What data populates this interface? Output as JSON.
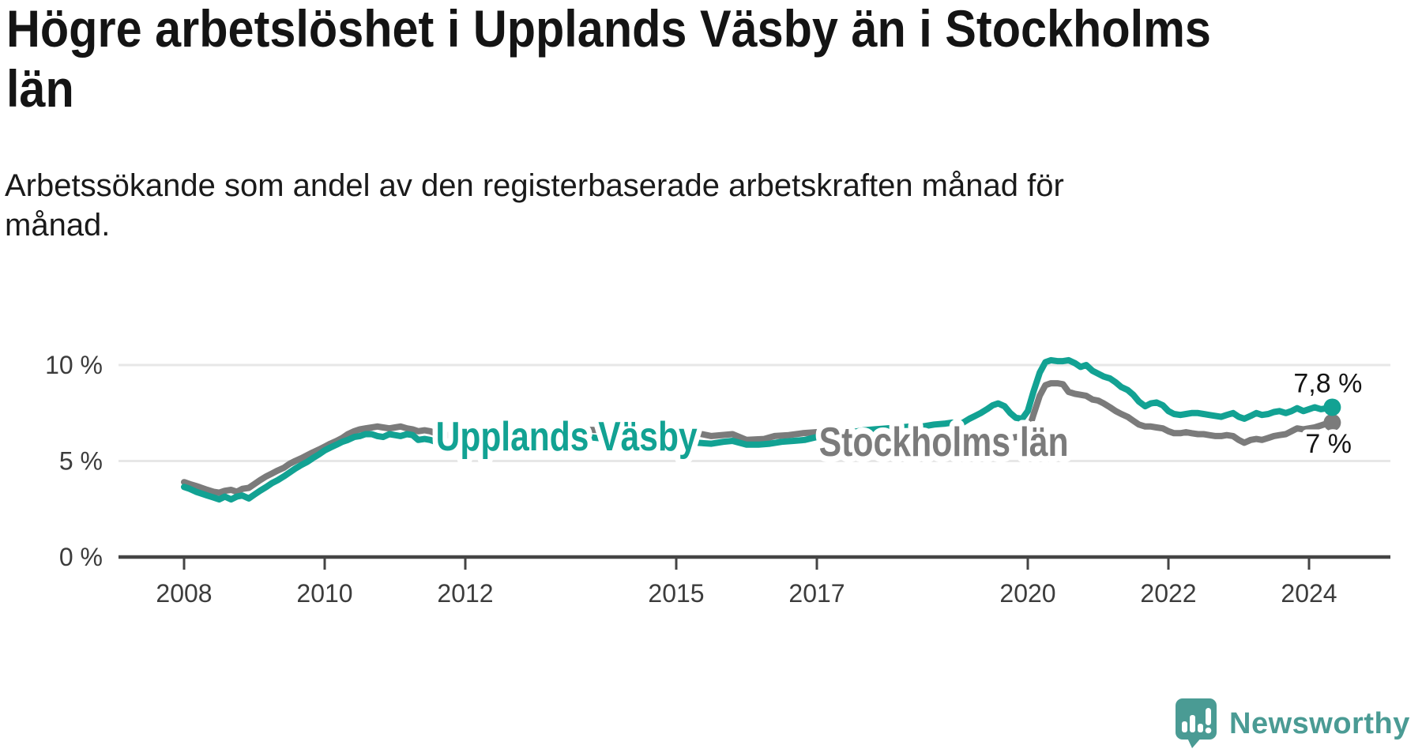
{
  "title_lines": [
    "Högre arbetslöshet i Upplands Väsby än i Stockholms",
    "län"
  ],
  "subtitle_lines": [
    "Arbetssökande som andel av den registerbaserade arbetskraften månad för",
    "månad."
  ],
  "branding": {
    "logo_text": "Newsworthy",
    "brand_color": "#4A9B94"
  },
  "chart_data": {
    "type": "line",
    "title": "Högre arbetslöshet i Upplands Väsby än i Stockholms län",
    "subtitle": "Arbetssökande som andel av den registerbaserade arbetskraften månad för månad.",
    "xlabel": "",
    "ylabel": "",
    "x_unit": "year (monthly data)",
    "y_unit": "%",
    "grid": true,
    "legend": "inline-labels",
    "ylim": [
      0,
      10.6
    ],
    "xlim": [
      2008,
      2024.45
    ],
    "y_axis": {
      "ticks": [
        {
          "value": 0,
          "label": "0 %"
        },
        {
          "value": 5,
          "label": "5 %"
        },
        {
          "value": 10,
          "label": "10 %"
        }
      ]
    },
    "x_axis": {
      "ticks": [
        2008,
        2010,
        2012,
        2015,
        2017,
        2020,
        2022,
        2024
      ],
      "labels": [
        "2008",
        "2010",
        "2012",
        "2015",
        "2017",
        "2020",
        "2022",
        "2024"
      ]
    },
    "series": [
      {
        "name": "Upplands Väsby",
        "color": "#12A293",
        "end_label": "7,8 %",
        "end_value": 7.8,
        "label_anchor": {
          "x": 2011.58,
          "y": 5.56
        },
        "points": [
          [
            2008.0,
            3.65
          ],
          [
            2008.08,
            3.55
          ],
          [
            2008.17,
            3.4
          ],
          [
            2008.25,
            3.3
          ],
          [
            2008.33,
            3.2
          ],
          [
            2008.42,
            3.1
          ],
          [
            2008.5,
            3.0
          ],
          [
            2008.58,
            3.15
          ],
          [
            2008.67,
            3.0
          ],
          [
            2008.75,
            3.15
          ],
          [
            2008.83,
            3.2
          ],
          [
            2008.92,
            3.05
          ],
          [
            2009.0,
            3.25
          ],
          [
            2009.08,
            3.45
          ],
          [
            2009.17,
            3.65
          ],
          [
            2009.25,
            3.85
          ],
          [
            2009.33,
            4.0
          ],
          [
            2009.42,
            4.2
          ],
          [
            2009.5,
            4.4
          ],
          [
            2009.58,
            4.6
          ],
          [
            2009.67,
            4.8
          ],
          [
            2009.75,
            4.95
          ],
          [
            2009.83,
            5.15
          ],
          [
            2009.92,
            5.35
          ],
          [
            2010.0,
            5.55
          ],
          [
            2010.08,
            5.7
          ],
          [
            2010.17,
            5.85
          ],
          [
            2010.25,
            6.0
          ],
          [
            2010.33,
            6.1
          ],
          [
            2010.42,
            6.25
          ],
          [
            2010.5,
            6.3
          ],
          [
            2010.58,
            6.4
          ],
          [
            2010.67,
            6.4
          ],
          [
            2010.75,
            6.3
          ],
          [
            2010.83,
            6.25
          ],
          [
            2010.92,
            6.4
          ],
          [
            2011.0,
            6.35
          ],
          [
            2011.08,
            6.3
          ],
          [
            2011.17,
            6.4
          ],
          [
            2011.25,
            6.35
          ],
          [
            2011.33,
            6.1
          ],
          [
            2011.42,
            6.15
          ],
          [
            2011.5,
            6.1
          ],
          [
            2011.58,
            6.0
          ],
          [
            2011.67,
            5.8
          ],
          [
            2011.75,
            5.9
          ],
          [
            2011.83,
            5.85
          ],
          [
            2012.0,
            5.95
          ],
          [
            2012.25,
            6.1
          ],
          [
            2012.5,
            6.2
          ],
          [
            2012.75,
            6.3
          ],
          [
            2013.0,
            6.35
          ],
          [
            2013.25,
            6.4
          ],
          [
            2013.5,
            6.35
          ],
          [
            2013.75,
            6.25
          ],
          [
            2014.0,
            6.15
          ],
          [
            2014.25,
            6.1
          ],
          [
            2014.5,
            6.05
          ],
          [
            2014.75,
            6.0
          ],
          [
            2015.0,
            5.95
          ],
          [
            2015.17,
            6.0
          ],
          [
            2015.3,
            5.95
          ],
          [
            2015.5,
            5.9
          ],
          [
            2015.67,
            6.0
          ],
          [
            2015.8,
            6.05
          ],
          [
            2016.0,
            5.85
          ],
          [
            2016.17,
            5.85
          ],
          [
            2016.33,
            5.9
          ],
          [
            2016.5,
            6.0
          ],
          [
            2016.67,
            6.05
          ],
          [
            2016.83,
            6.1
          ],
          [
            2017.0,
            6.25
          ],
          [
            2017.17,
            6.35
          ],
          [
            2017.33,
            6.45
          ],
          [
            2017.5,
            6.5
          ],
          [
            2017.67,
            6.6
          ],
          [
            2017.83,
            6.65
          ],
          [
            2018.0,
            6.7
          ],
          [
            2018.17,
            6.75
          ],
          [
            2018.33,
            6.8
          ],
          [
            2018.5,
            6.8
          ],
          [
            2018.67,
            6.9
          ],
          [
            2018.83,
            6.95
          ],
          [
            2018.92,
            7.0
          ],
          [
            2019.0,
            6.85
          ],
          [
            2019.08,
            7.0
          ],
          [
            2019.17,
            7.2
          ],
          [
            2019.25,
            7.35
          ],
          [
            2019.33,
            7.5
          ],
          [
            2019.42,
            7.7
          ],
          [
            2019.5,
            7.9
          ],
          [
            2019.58,
            8.0
          ],
          [
            2019.67,
            7.85
          ],
          [
            2019.75,
            7.5
          ],
          [
            2019.83,
            7.25
          ],
          [
            2019.92,
            7.2
          ],
          [
            2020.0,
            7.6
          ],
          [
            2020.08,
            8.6
          ],
          [
            2020.17,
            9.6
          ],
          [
            2020.25,
            10.15
          ],
          [
            2020.33,
            10.25
          ],
          [
            2020.42,
            10.2
          ],
          [
            2020.5,
            10.2
          ],
          [
            2020.58,
            10.25
          ],
          [
            2020.67,
            10.1
          ],
          [
            2020.75,
            9.9
          ],
          [
            2020.83,
            10.0
          ],
          [
            2020.92,
            9.7
          ],
          [
            2021.0,
            9.55
          ],
          [
            2021.08,
            9.4
          ],
          [
            2021.17,
            9.3
          ],
          [
            2021.25,
            9.1
          ],
          [
            2021.33,
            8.85
          ],
          [
            2021.42,
            8.7
          ],
          [
            2021.5,
            8.45
          ],
          [
            2021.58,
            8.1
          ],
          [
            2021.67,
            7.85
          ],
          [
            2021.75,
            8.0
          ],
          [
            2021.83,
            8.05
          ],
          [
            2021.92,
            7.9
          ],
          [
            2022.0,
            7.6
          ],
          [
            2022.08,
            7.45
          ],
          [
            2022.17,
            7.4
          ],
          [
            2022.25,
            7.45
          ],
          [
            2022.33,
            7.5
          ],
          [
            2022.42,
            7.5
          ],
          [
            2022.5,
            7.45
          ],
          [
            2022.58,
            7.4
          ],
          [
            2022.67,
            7.35
          ],
          [
            2022.75,
            7.3
          ],
          [
            2022.83,
            7.4
          ],
          [
            2022.92,
            7.5
          ],
          [
            2023.0,
            7.3
          ],
          [
            2023.08,
            7.2
          ],
          [
            2023.17,
            7.35
          ],
          [
            2023.25,
            7.5
          ],
          [
            2023.33,
            7.4
          ],
          [
            2023.42,
            7.45
          ],
          [
            2023.5,
            7.55
          ],
          [
            2023.58,
            7.6
          ],
          [
            2023.67,
            7.5
          ],
          [
            2023.75,
            7.6
          ],
          [
            2023.83,
            7.75
          ],
          [
            2023.92,
            7.6
          ],
          [
            2024.0,
            7.7
          ],
          [
            2024.08,
            7.8
          ],
          [
            2024.17,
            7.7
          ],
          [
            2024.25,
            7.75
          ],
          [
            2024.33,
            7.8
          ]
        ]
      },
      {
        "name": "Stockholms län",
        "color": "#7B7B7B",
        "end_label": "7 %",
        "end_value": 7.0,
        "label_anchor": {
          "x": 2017.03,
          "y": 5.27
        },
        "points": [
          [
            2008.0,
            3.9
          ],
          [
            2008.08,
            3.8
          ],
          [
            2008.17,
            3.7
          ],
          [
            2008.25,
            3.6
          ],
          [
            2008.33,
            3.5
          ],
          [
            2008.42,
            3.4
          ],
          [
            2008.5,
            3.35
          ],
          [
            2008.58,
            3.45
          ],
          [
            2008.67,
            3.5
          ],
          [
            2008.75,
            3.4
          ],
          [
            2008.83,
            3.55
          ],
          [
            2008.92,
            3.6
          ],
          [
            2009.0,
            3.8
          ],
          [
            2009.08,
            4.0
          ],
          [
            2009.17,
            4.2
          ],
          [
            2009.25,
            4.35
          ],
          [
            2009.33,
            4.5
          ],
          [
            2009.42,
            4.65
          ],
          [
            2009.5,
            4.85
          ],
          [
            2009.58,
            5.0
          ],
          [
            2009.67,
            5.15
          ],
          [
            2009.75,
            5.3
          ],
          [
            2009.83,
            5.45
          ],
          [
            2009.92,
            5.6
          ],
          [
            2010.0,
            5.75
          ],
          [
            2010.08,
            5.9
          ],
          [
            2010.17,
            6.05
          ],
          [
            2010.25,
            6.2
          ],
          [
            2010.33,
            6.4
          ],
          [
            2010.42,
            6.55
          ],
          [
            2010.5,
            6.65
          ],
          [
            2010.58,
            6.7
          ],
          [
            2010.67,
            6.75
          ],
          [
            2010.75,
            6.8
          ],
          [
            2010.83,
            6.75
          ],
          [
            2010.92,
            6.7
          ],
          [
            2011.0,
            6.75
          ],
          [
            2011.08,
            6.8
          ],
          [
            2011.17,
            6.7
          ],
          [
            2011.25,
            6.65
          ],
          [
            2011.33,
            6.55
          ],
          [
            2011.42,
            6.6
          ],
          [
            2011.5,
            6.55
          ],
          [
            2011.58,
            6.45
          ],
          [
            2011.67,
            6.4
          ],
          [
            2011.75,
            6.35
          ],
          [
            2012.0,
            6.45
          ],
          [
            2012.5,
            6.55
          ],
          [
            2013.0,
            6.6
          ],
          [
            2013.5,
            6.65
          ],
          [
            2014.0,
            6.6
          ],
          [
            2014.5,
            6.5
          ],
          [
            2015.0,
            6.45
          ],
          [
            2015.3,
            6.45
          ],
          [
            2015.5,
            6.3
          ],
          [
            2015.8,
            6.4
          ],
          [
            2016.0,
            6.1
          ],
          [
            2016.25,
            6.15
          ],
          [
            2016.4,
            6.3
          ],
          [
            2016.6,
            6.35
          ],
          [
            2016.8,
            6.45
          ],
          [
            2017.0,
            6.5
          ],
          [
            2017.25,
            6.35
          ],
          [
            2017.5,
            6.2
          ],
          [
            2017.75,
            6.1
          ],
          [
            2018.0,
            6.0
          ],
          [
            2018.25,
            5.95
          ],
          [
            2018.5,
            5.9
          ],
          [
            2018.75,
            5.9
          ],
          [
            2019.0,
            5.95
          ],
          [
            2019.25,
            6.0
          ],
          [
            2019.5,
            6.1
          ],
          [
            2019.75,
            6.2
          ],
          [
            2019.92,
            6.3
          ],
          [
            2020.0,
            6.45
          ],
          [
            2020.08,
            7.4
          ],
          [
            2020.17,
            8.4
          ],
          [
            2020.25,
            8.95
          ],
          [
            2020.33,
            9.05
          ],
          [
            2020.42,
            9.05
          ],
          [
            2020.5,
            9.0
          ],
          [
            2020.58,
            8.6
          ],
          [
            2020.67,
            8.5
          ],
          [
            2020.75,
            8.45
          ],
          [
            2020.83,
            8.4
          ],
          [
            2020.92,
            8.2
          ],
          [
            2021.0,
            8.15
          ],
          [
            2021.08,
            8.0
          ],
          [
            2021.17,
            7.8
          ],
          [
            2021.25,
            7.6
          ],
          [
            2021.33,
            7.45
          ],
          [
            2021.42,
            7.3
          ],
          [
            2021.5,
            7.1
          ],
          [
            2021.58,
            6.9
          ],
          [
            2021.67,
            6.8
          ],
          [
            2021.75,
            6.8
          ],
          [
            2021.83,
            6.75
          ],
          [
            2021.92,
            6.7
          ],
          [
            2022.0,
            6.55
          ],
          [
            2022.08,
            6.45
          ],
          [
            2022.17,
            6.45
          ],
          [
            2022.25,
            6.5
          ],
          [
            2022.33,
            6.45
          ],
          [
            2022.42,
            6.4
          ],
          [
            2022.5,
            6.4
          ],
          [
            2022.58,
            6.35
          ],
          [
            2022.67,
            6.3
          ],
          [
            2022.75,
            6.3
          ],
          [
            2022.83,
            6.35
          ],
          [
            2022.92,
            6.3
          ],
          [
            2023.0,
            6.1
          ],
          [
            2023.08,
            5.95
          ],
          [
            2023.17,
            6.1
          ],
          [
            2023.25,
            6.15
          ],
          [
            2023.33,
            6.1
          ],
          [
            2023.42,
            6.2
          ],
          [
            2023.5,
            6.3
          ],
          [
            2023.58,
            6.35
          ],
          [
            2023.67,
            6.4
          ],
          [
            2023.75,
            6.55
          ],
          [
            2023.83,
            6.7
          ],
          [
            2023.92,
            6.65
          ],
          [
            2024.0,
            6.7
          ],
          [
            2024.08,
            6.75
          ],
          [
            2024.17,
            6.85
          ],
          [
            2024.25,
            6.95
          ],
          [
            2024.33,
            7.0
          ]
        ]
      }
    ]
  }
}
